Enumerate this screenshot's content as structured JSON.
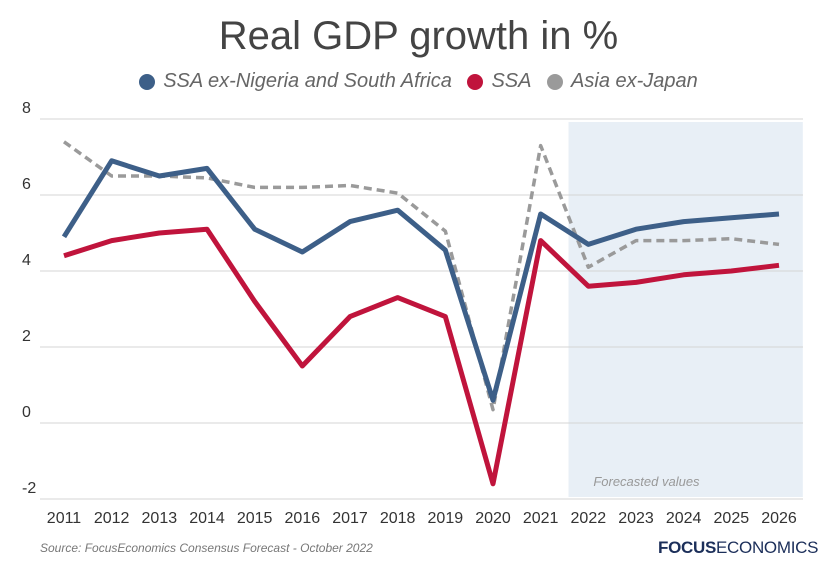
{
  "chart_data": {
    "type": "line",
    "title": "Real GDP growth in %",
    "x": [
      2011,
      2012,
      2013,
      2014,
      2015,
      2016,
      2017,
      2018,
      2019,
      2020,
      2021,
      2022,
      2023,
      2024,
      2025,
      2026
    ],
    "ylim": [
      -2,
      8
    ],
    "yticks": [
      -2,
      0,
      2,
      4,
      6,
      8
    ],
    "grid": true,
    "legend_placement": "top",
    "series": [
      {
        "name": "SSA ex-Nigeria and South Africa",
        "color": "#3d5f88",
        "style": "solid",
        "values": [
          4.9,
          6.9,
          6.5,
          6.7,
          5.1,
          4.5,
          5.3,
          5.6,
          4.55,
          0.6,
          5.5,
          4.7,
          5.1,
          5.3,
          5.4,
          5.5
        ]
      },
      {
        "name": "SSA",
        "color": "#c0143c",
        "style": "solid",
        "values": [
          4.4,
          4.8,
          5.0,
          5.1,
          3.2,
          1.5,
          2.8,
          3.3,
          2.8,
          -1.6,
          4.8,
          3.6,
          3.7,
          3.9,
          4.0,
          4.15
        ]
      },
      {
        "name": "Asia ex-Japan",
        "color": "#9a9a9a",
        "style": "dashed",
        "values": [
          7.4,
          6.5,
          6.5,
          6.45,
          6.2,
          6.2,
          6.25,
          6.05,
          5.05,
          0.35,
          7.3,
          4.1,
          4.8,
          4.8,
          4.85,
          4.7
        ]
      }
    ],
    "forecast_region": {
      "from": 2022,
      "to": 2026,
      "label": "Forecasted values",
      "color": "#e8eff6"
    }
  },
  "source": "Source:  FocusEconomics Consensus Forecast - October 2022",
  "logo": {
    "bold": "FOCUS",
    "light": "ECONOMICS"
  }
}
